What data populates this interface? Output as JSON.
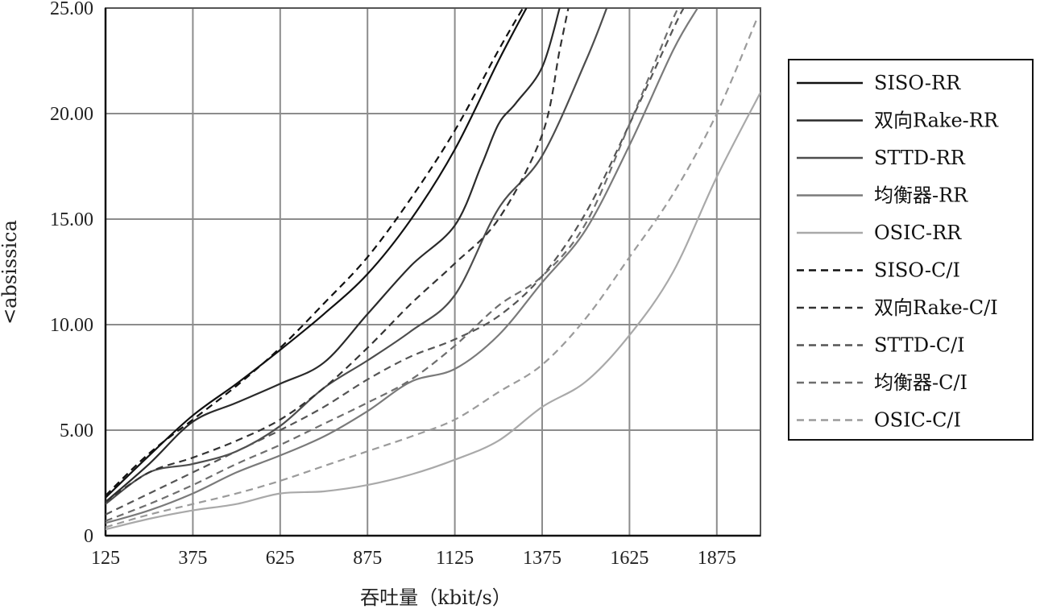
{
  "chart_data": {
    "type": "line",
    "title": "",
    "xlabel": "吞吐量（kbit/s）",
    "ylabel": "<absissica",
    "xlim": [
      125,
      2000
    ],
    "ylim": [
      0,
      25
    ],
    "x_ticks": [
      "125",
      "375",
      "625",
      "875",
      "1125",
      "1375",
      "1625",
      "1875"
    ],
    "y_ticks": [
      "0",
      "5.00",
      "10.00",
      "15.00",
      "20.00",
      "25.00"
    ],
    "grid": true,
    "legend_position": "right",
    "series": [
      {
        "name": "SISO-RR",
        "dash": "solid",
        "color": "#111111",
        "points": [
          [
            125,
            1.8
          ],
          [
            250,
            3.8
          ],
          [
            375,
            5.7
          ],
          [
            500,
            7.2
          ],
          [
            625,
            8.8
          ],
          [
            750,
            10.5
          ],
          [
            875,
            12.4
          ],
          [
            1000,
            15.0
          ],
          [
            1125,
            18.3
          ],
          [
            1250,
            22.5
          ],
          [
            1330,
            25.0
          ]
        ]
      },
      {
        "name": "双向Rake-RR",
        "dash": "solid",
        "color": "#2a2a2a",
        "points": [
          [
            125,
            1.6
          ],
          [
            250,
            3.4
          ],
          [
            375,
            5.4
          ],
          [
            500,
            6.3
          ],
          [
            625,
            7.2
          ],
          [
            750,
            8.2
          ],
          [
            875,
            10.5
          ],
          [
            1000,
            12.8
          ],
          [
            1125,
            14.7
          ],
          [
            1200,
            17.5
          ],
          [
            1250,
            19.5
          ],
          [
            1300,
            20.5
          ],
          [
            1375,
            22.2
          ],
          [
            1425,
            25.0
          ]
        ]
      },
      {
        "name": "STTD-RR",
        "dash": "solid",
        "color": "#4d4d4d",
        "points": [
          [
            125,
            1.5
          ],
          [
            250,
            3.0
          ],
          [
            375,
            3.4
          ],
          [
            500,
            4.0
          ],
          [
            625,
            5.2
          ],
          [
            750,
            7.0
          ],
          [
            875,
            8.3
          ],
          [
            1000,
            9.7
          ],
          [
            1125,
            11.4
          ],
          [
            1250,
            15.5
          ],
          [
            1375,
            18.0
          ],
          [
            1500,
            22.5
          ],
          [
            1560,
            25.0
          ]
        ]
      },
      {
        "name": "均衡器-RR",
        "dash": "solid",
        "color": "#7a7a7a",
        "points": [
          [
            125,
            0.6
          ],
          [
            250,
            1.2
          ],
          [
            375,
            2.0
          ],
          [
            500,
            3.0
          ],
          [
            625,
            3.8
          ],
          [
            750,
            4.7
          ],
          [
            875,
            5.9
          ],
          [
            1000,
            7.3
          ],
          [
            1125,
            7.9
          ],
          [
            1250,
            9.5
          ],
          [
            1375,
            12.0
          ],
          [
            1500,
            14.5
          ],
          [
            1625,
            18.5
          ],
          [
            1750,
            23.0
          ],
          [
            1820,
            25.0
          ]
        ]
      },
      {
        "name": "OSIC-RR",
        "dash": "solid",
        "color": "#a9a9a9",
        "points": [
          [
            125,
            0.3
          ],
          [
            250,
            0.8
          ],
          [
            375,
            1.2
          ],
          [
            500,
            1.5
          ],
          [
            625,
            2.0
          ],
          [
            750,
            2.1
          ],
          [
            875,
            2.4
          ],
          [
            1000,
            2.9
          ],
          [
            1125,
            3.6
          ],
          [
            1250,
            4.5
          ],
          [
            1375,
            6.1
          ],
          [
            1500,
            7.3
          ],
          [
            1625,
            9.5
          ],
          [
            1750,
            12.5
          ],
          [
            1875,
            17.0
          ],
          [
            2000,
            21.0
          ]
        ]
      },
      {
        "name": "SISO-C/I",
        "dash": "dashed",
        "color": "#111111",
        "points": [
          [
            125,
            1.9
          ],
          [
            250,
            3.9
          ],
          [
            375,
            5.5
          ],
          [
            500,
            7.1
          ],
          [
            625,
            8.9
          ],
          [
            750,
            11.0
          ],
          [
            875,
            13.2
          ],
          [
            1000,
            16.0
          ],
          [
            1125,
            19.2
          ],
          [
            1250,
            23.0
          ],
          [
            1320,
            25.0
          ]
        ]
      },
      {
        "name": "双向Rake-C/I",
        "dash": "dashed",
        "color": "#333333",
        "points": [
          [
            125,
            1.6
          ],
          [
            250,
            3.0
          ],
          [
            375,
            3.7
          ],
          [
            500,
            4.5
          ],
          [
            625,
            5.5
          ],
          [
            750,
            7.0
          ],
          [
            875,
            8.9
          ],
          [
            1000,
            11.0
          ],
          [
            1125,
            12.9
          ],
          [
            1250,
            15.0
          ],
          [
            1375,
            19.0
          ],
          [
            1425,
            23.0
          ],
          [
            1450,
            25.0
          ]
        ]
      },
      {
        "name": "STTD-C/I",
        "dash": "dashed",
        "color": "#555555",
        "points": [
          [
            125,
            1.0
          ],
          [
            250,
            2.0
          ],
          [
            375,
            3.0
          ],
          [
            500,
            4.0
          ],
          [
            625,
            5.0
          ],
          [
            750,
            6.1
          ],
          [
            875,
            7.4
          ],
          [
            1000,
            8.5
          ],
          [
            1125,
            9.3
          ],
          [
            1250,
            10.4
          ],
          [
            1375,
            12.3
          ],
          [
            1500,
            15.3
          ],
          [
            1625,
            19.5
          ],
          [
            1750,
            24.0
          ],
          [
            1780,
            25.0
          ]
        ]
      },
      {
        "name": "均衡器-C/I",
        "dash": "dashed",
        "color": "#6e6e6e",
        "points": [
          [
            125,
            0.7
          ],
          [
            250,
            1.5
          ],
          [
            375,
            2.4
          ],
          [
            500,
            3.4
          ],
          [
            625,
            4.3
          ],
          [
            750,
            5.3
          ],
          [
            875,
            6.3
          ],
          [
            1000,
            7.4
          ],
          [
            1125,
            9.0
          ],
          [
            1250,
            10.9
          ],
          [
            1375,
            12.3
          ],
          [
            1500,
            14.8
          ],
          [
            1625,
            19.5
          ],
          [
            1750,
            24.5
          ],
          [
            1770,
            25.0
          ]
        ]
      },
      {
        "name": "OSIC-C/I",
        "dash": "dashed",
        "color": "#9b9b9b",
        "points": [
          [
            125,
            0.4
          ],
          [
            250,
            1.0
          ],
          [
            375,
            1.5
          ],
          [
            500,
            2.0
          ],
          [
            625,
            2.6
          ],
          [
            750,
            3.3
          ],
          [
            875,
            4.0
          ],
          [
            1000,
            4.7
          ],
          [
            1125,
            5.5
          ],
          [
            1250,
            6.8
          ],
          [
            1375,
            8.1
          ],
          [
            1500,
            10.3
          ],
          [
            1625,
            13.2
          ],
          [
            1750,
            16.2
          ],
          [
            1875,
            20.0
          ],
          [
            1990,
            24.5
          ]
        ]
      }
    ]
  }
}
